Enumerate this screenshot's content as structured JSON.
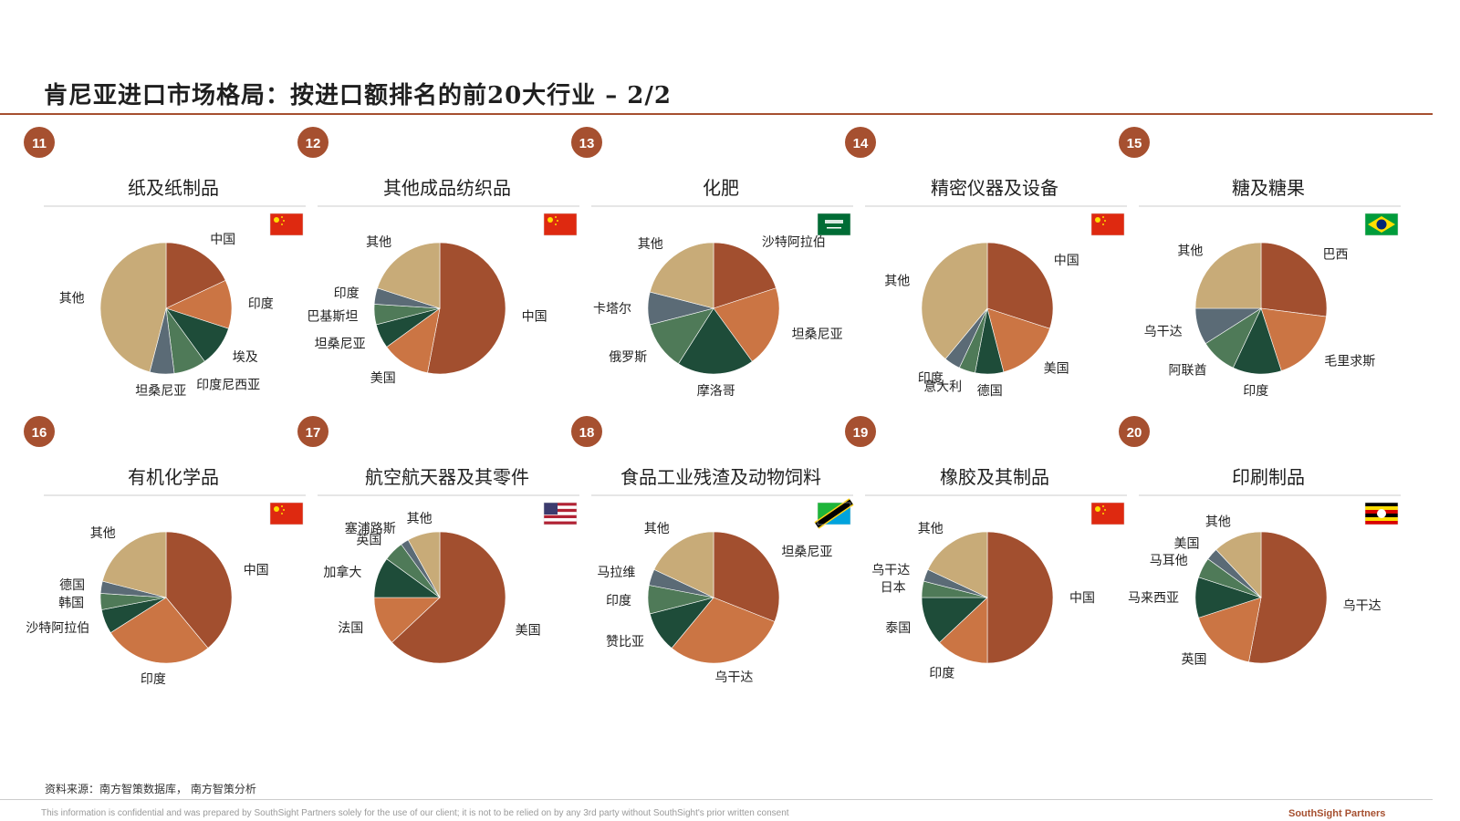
{
  "page": {
    "title": "肯尼亚进口市场格局：按进口额排名的前20大行业 – 2/2",
    "source": "资料来源：南方智策数据库， 南方智策分析",
    "disclaimer": "This information is confidential and was prepared by SouthSight Partners solely for the use of our client; it is not to be relied on by any 3rd party without SouthSight's prior written consent",
    "brand": "SouthSight Partners"
  },
  "colors": {
    "accent": "#a65030",
    "pie_palette": [
      "#a24f2f",
      "#cb7544",
      "#1e4c39",
      "#4f7a58",
      "#5b6b76",
      "#c8ab78"
    ]
  },
  "chart_data": [
    {
      "type": "pie",
      "number": "11",
      "title": "纸及纸制品",
      "flag": "china",
      "slices": [
        {
          "label": "中国",
          "value": 18,
          "color": "#a24f2f"
        },
        {
          "label": "印度",
          "value": 12,
          "color": "#cb7544"
        },
        {
          "label": "埃及",
          "value": 10,
          "color": "#1e4c39"
        },
        {
          "label": "印度尼西亚",
          "value": 8,
          "color": "#4f7a58"
        },
        {
          "label": "坦桑尼亚",
          "value": 6,
          "color": "#5b6b76"
        },
        {
          "label": "其他",
          "value": 46,
          "color": "#c8ab78"
        }
      ]
    },
    {
      "type": "pie",
      "number": "12",
      "title": "其他成品纺织品",
      "flag": "china",
      "slices": [
        {
          "label": "中国",
          "value": 53,
          "color": "#a24f2f"
        },
        {
          "label": "美国",
          "value": 12,
          "color": "#cb7544"
        },
        {
          "label": "坦桑尼亚",
          "value": 6,
          "color": "#1e4c39"
        },
        {
          "label": "巴基斯坦",
          "value": 5,
          "color": "#4f7a58"
        },
        {
          "label": "印度",
          "value": 4,
          "color": "#5b6b76"
        },
        {
          "label": "其他",
          "value": 20,
          "color": "#c8ab78"
        }
      ]
    },
    {
      "type": "pie",
      "number": "13",
      "title": "化肥",
      "flag": "saudi",
      "slices": [
        {
          "label": "沙特阿拉伯",
          "value": 20,
          "color": "#a24f2f"
        },
        {
          "label": "坦桑尼亚",
          "value": 20,
          "color": "#cb7544"
        },
        {
          "label": "摩洛哥",
          "value": 19,
          "color": "#1e4c39"
        },
        {
          "label": "俄罗斯",
          "value": 12,
          "color": "#4f7a58"
        },
        {
          "label": "卡塔尔",
          "value": 8,
          "color": "#5b6b76"
        },
        {
          "label": "其他",
          "value": 21,
          "color": "#c8ab78"
        }
      ]
    },
    {
      "type": "pie",
      "number": "14",
      "title": "精密仪器及设备",
      "flag": "china",
      "slices": [
        {
          "label": "中国",
          "value": 30,
          "color": "#a24f2f"
        },
        {
          "label": "美国",
          "value": 16,
          "color": "#cb7544"
        },
        {
          "label": "德国",
          "value": 7,
          "color": "#1e4c39"
        },
        {
          "label": "意大利",
          "value": 4,
          "color": "#4f7a58"
        },
        {
          "label": "印度",
          "value": 4,
          "color": "#5b6b76"
        },
        {
          "label": "其他",
          "value": 39,
          "color": "#c8ab78"
        }
      ]
    },
    {
      "type": "pie",
      "number": "15",
      "title": "糖及糖果",
      "flag": "brazil",
      "slices": [
        {
          "label": "巴西",
          "value": 27,
          "color": "#a24f2f"
        },
        {
          "label": "毛里求斯",
          "value": 18,
          "color": "#cb7544"
        },
        {
          "label": "印度",
          "value": 12,
          "color": "#1e4c39"
        },
        {
          "label": "阿联酋",
          "value": 9,
          "color": "#4f7a58"
        },
        {
          "label": "乌干达",
          "value": 9,
          "color": "#5b6b76"
        },
        {
          "label": "其他",
          "value": 25,
          "color": "#c8ab78"
        }
      ]
    },
    {
      "type": "pie",
      "number": "16",
      "title": "有机化学品",
      "flag": "china",
      "slices": [
        {
          "label": "中国",
          "value": 39,
          "color": "#a24f2f"
        },
        {
          "label": "印度",
          "value": 27,
          "color": "#cb7544"
        },
        {
          "label": "沙特阿拉伯",
          "value": 6,
          "color": "#1e4c39"
        },
        {
          "label": "韩国",
          "value": 4,
          "color": "#4f7a58"
        },
        {
          "label": "德国",
          "value": 3,
          "color": "#5b6b76"
        },
        {
          "label": "其他",
          "value": 21,
          "color": "#c8ab78"
        }
      ]
    },
    {
      "type": "pie",
      "number": "17",
      "title": "航空航天器及其零件",
      "flag": "usa",
      "slices": [
        {
          "label": "美国",
          "value": 63,
          "color": "#a24f2f"
        },
        {
          "label": "法国",
          "value": 12,
          "color": "#cb7544"
        },
        {
          "label": "加拿大",
          "value": 10,
          "color": "#1e4c39"
        },
        {
          "label": "英国",
          "value": 5,
          "color": "#4f7a58"
        },
        {
          "label": "塞浦路斯",
          "value": 2,
          "color": "#5b6b76"
        },
        {
          "label": "其他",
          "value": 8,
          "color": "#c8ab78"
        }
      ]
    },
    {
      "type": "pie",
      "number": "18",
      "title": "食品工业残渣及动物饲料",
      "flag": "tanzania",
      "slices": [
        {
          "label": "坦桑尼亚",
          "value": 31,
          "color": "#a24f2f"
        },
        {
          "label": "乌干达",
          "value": 30,
          "color": "#cb7544"
        },
        {
          "label": "赞比亚",
          "value": 10,
          "color": "#1e4c39"
        },
        {
          "label": "印度",
          "value": 7,
          "color": "#4f7a58"
        },
        {
          "label": "马拉维",
          "value": 4,
          "color": "#5b6b76"
        },
        {
          "label": "其他",
          "value": 18,
          "color": "#c8ab78"
        }
      ]
    },
    {
      "type": "pie",
      "number": "19",
      "title": "橡胶及其制品",
      "flag": "china",
      "slices": [
        {
          "label": "中国",
          "value": 50,
          "color": "#a24f2f"
        },
        {
          "label": "印度",
          "value": 13,
          "color": "#cb7544"
        },
        {
          "label": "泰国",
          "value": 12,
          "color": "#1e4c39"
        },
        {
          "label": "日本",
          "value": 4,
          "color": "#4f7a58"
        },
        {
          "label": "乌干达",
          "value": 3,
          "color": "#5b6b76"
        },
        {
          "label": "其他",
          "value": 18,
          "color": "#c8ab78"
        }
      ]
    },
    {
      "type": "pie",
      "number": "20",
      "title": "印刷制品",
      "flag": "uganda",
      "slices": [
        {
          "label": "乌干达",
          "value": 53,
          "color": "#a24f2f"
        },
        {
          "label": "英国",
          "value": 17,
          "color": "#cb7544"
        },
        {
          "label": "马来西亚",
          "value": 10,
          "color": "#1e4c39"
        },
        {
          "label": "马耳他",
          "value": 5,
          "color": "#4f7a58"
        },
        {
          "label": "美国",
          "value": 3,
          "color": "#5b6b76"
        },
        {
          "label": "其他",
          "value": 12,
          "color": "#c8ab78"
        }
      ]
    }
  ]
}
